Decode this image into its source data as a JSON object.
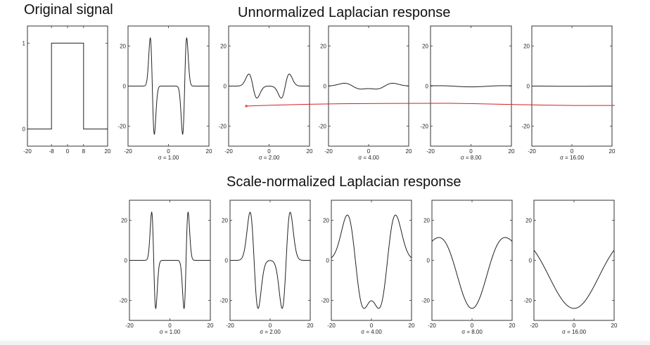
{
  "titles": {
    "original": "Original signal",
    "unnormalized": "Unnormalized Laplacian response",
    "normalized": "Scale-normalized Laplacian response"
  },
  "colors": {
    "curve": "#222222",
    "axis": "#333333",
    "annotation": "#d42020"
  },
  "chart_data": [
    {
      "type": "line",
      "id": "original-signal",
      "x": [
        -20,
        -8,
        -8,
        8,
        8,
        20
      ],
      "y": [
        0,
        0,
        1,
        1,
        0,
        0
      ],
      "xlim": [
        -20,
        20
      ],
      "ylim": [
        -0.2,
        1.2
      ],
      "xticks": [
        -20,
        -8,
        0,
        8,
        20
      ],
      "yticks": [
        0,
        1
      ],
      "title": "",
      "xlabel": "",
      "ylabel": ""
    },
    {
      "type": "line",
      "id": "unnorm-s1",
      "sigma": 1,
      "scale": 24,
      "xlim": [
        -20,
        20
      ],
      "ylim": [
        -30,
        30
      ],
      "xticks": [
        -20,
        0,
        20
      ],
      "yticks": [
        -20,
        0,
        20
      ],
      "xlabel": "σ = 1.00"
    },
    {
      "type": "line",
      "id": "unnorm-s2",
      "sigma": 2,
      "scale": 6,
      "xlim": [
        -20,
        20
      ],
      "ylim": [
        -30,
        30
      ],
      "xticks": [
        -20,
        0,
        20
      ],
      "yticks": [
        -20,
        0,
        20
      ],
      "xlabel": "σ = 2.00"
    },
    {
      "type": "line",
      "id": "unnorm-s4",
      "sigma": 4,
      "scale": 1.5,
      "xlim": [
        -20,
        20
      ],
      "ylim": [
        -30,
        30
      ],
      "xticks": [
        -20,
        0,
        20
      ],
      "yticks": [
        -20,
        0,
        20
      ],
      "xlabel": "σ = 4.00"
    },
    {
      "type": "line",
      "id": "unnorm-s8",
      "sigma": 8,
      "scale": 0.4,
      "xlim": [
        -20,
        20
      ],
      "ylim": [
        -30,
        30
      ],
      "xticks": [
        -20,
        0,
        20
      ],
      "yticks": [
        -20,
        0,
        20
      ],
      "xlabel": "σ = 8.00"
    },
    {
      "type": "line",
      "id": "unnorm-s16",
      "sigma": 16,
      "scale": 0.1,
      "xlim": [
        -20,
        20
      ],
      "ylim": [
        -30,
        30
      ],
      "xticks": [
        -20,
        0,
        20
      ],
      "yticks": [
        -20,
        0,
        20
      ],
      "xlabel": "σ = 16.00"
    },
    {
      "type": "line",
      "id": "norm-s1",
      "sigma": 1,
      "scale": 24,
      "xlim": [
        -20,
        20
      ],
      "ylim": [
        -30,
        30
      ],
      "xticks": [
        -20,
        0,
        20
      ],
      "yticks": [
        -20,
        0,
        20
      ],
      "xlabel": "σ = 1.00"
    },
    {
      "type": "line",
      "id": "norm-s2",
      "sigma": 2,
      "scale": 24,
      "xlim": [
        -20,
        20
      ],
      "ylim": [
        -30,
        30
      ],
      "xticks": [
        -20,
        0,
        20
      ],
      "yticks": [
        -20,
        0,
        20
      ],
      "xlabel": "σ = 2.00"
    },
    {
      "type": "line",
      "id": "norm-s4",
      "sigma": 4,
      "scale": 24,
      "xlim": [
        -20,
        20
      ],
      "ylim": [
        -30,
        30
      ],
      "xticks": [
        -20,
        0,
        20
      ],
      "yticks": [
        -20,
        0,
        20
      ],
      "xlabel": "σ = 4.00"
    },
    {
      "type": "line",
      "id": "norm-s8",
      "sigma": 8,
      "scale": 24,
      "xlim": [
        -20,
        20
      ],
      "ylim": [
        -30,
        30
      ],
      "xticks": [
        -20,
        0,
        20
      ],
      "yticks": [
        -20,
        0,
        20
      ],
      "xlabel": "σ = 8.00"
    },
    {
      "type": "line",
      "id": "norm-s16",
      "sigma": 16,
      "scale": 24,
      "xlim": [
        -20,
        20
      ],
      "ylim": [
        -30,
        30
      ],
      "xticks": [
        -20,
        0,
        20
      ],
      "yticks": [
        -20,
        0,
        20
      ],
      "xlabel": "σ = 16.00"
    }
  ]
}
